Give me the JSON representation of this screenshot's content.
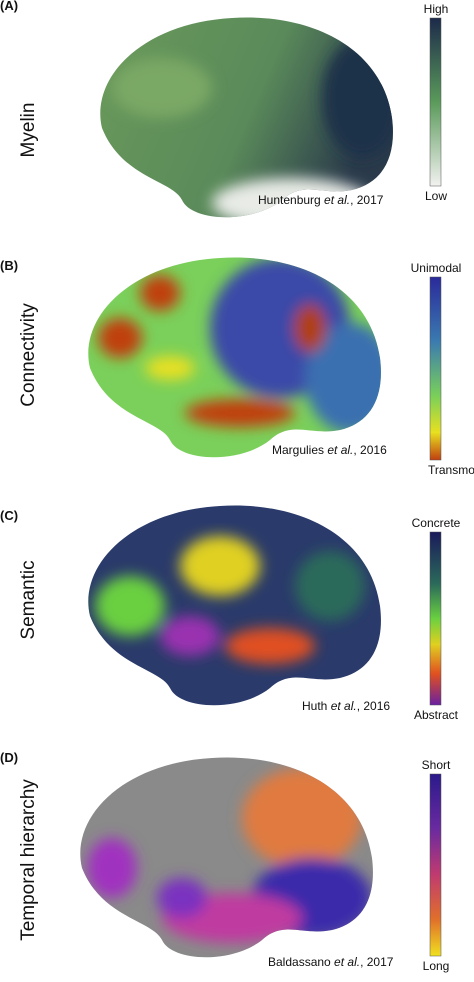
{
  "panels": [
    {
      "label": "(A)",
      "measure": "Myelin",
      "scale_top": "High",
      "scale_bottom": "Low",
      "citation": {
        "authors": "Huntenburg ",
        "etal": "et al.",
        "year": ", 2017"
      }
    },
    {
      "label": "(B)",
      "measure": "Connectivity",
      "scale_top": "Unimodal",
      "scale_bottom": "Transmodal",
      "citation": {
        "authors": "Margulies ",
        "etal": "et al.",
        "year": ", 2016"
      }
    },
    {
      "label": "(C)",
      "measure": "Semantic",
      "scale_top": "Concrete",
      "scale_bottom": "Abstract",
      "citation": {
        "authors": "Huth ",
        "etal": "et al.",
        "year": ", 2016"
      }
    },
    {
      "label": "(D)",
      "measure": "Temporal hierarchy",
      "scale_top": "Short",
      "scale_bottom": "Long",
      "citation": {
        "authors": "Baldassano ",
        "etal": "et al.",
        "year": ", 2017"
      }
    }
  ]
}
